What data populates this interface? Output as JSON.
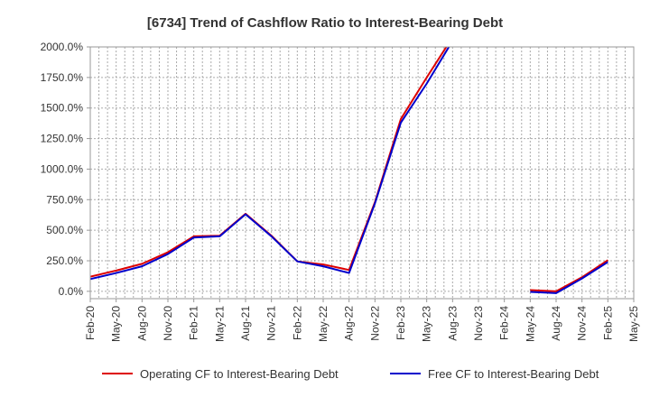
{
  "chart_data": {
    "type": "line",
    "title": "[6734]  Trend of Cashflow Ratio to Interest-Bearing Debt",
    "xlabel": "",
    "ylabel": "",
    "categories": [
      "Feb-20",
      "May-20",
      "Aug-20",
      "Nov-20",
      "Feb-21",
      "May-21",
      "Aug-21",
      "Nov-21",
      "Feb-22",
      "May-22",
      "Aug-22",
      "Nov-22",
      "Feb-23",
      "May-23",
      "Aug-23",
      "Nov-23",
      "Feb-24",
      "May-24",
      "Aug-24",
      "Nov-24",
      "Feb-25",
      "May-25"
    ],
    "x_ticks": [
      "Feb-20",
      "May-20",
      "Aug-20",
      "Nov-20",
      "Feb-21",
      "May-21",
      "Aug-21",
      "Nov-21",
      "Feb-22",
      "May-22",
      "Aug-22",
      "Nov-22",
      "Feb-23",
      "May-23",
      "Aug-23",
      "Nov-23",
      "Feb-24",
      "May-24",
      "Aug-24",
      "Nov-24",
      "Feb-25",
      "May-25"
    ],
    "y_ticks": [
      "0.0%",
      "250.0%",
      "500.0%",
      "750.0%",
      "1000.0%",
      "1250.0%",
      "1500.0%",
      "1750.0%",
      "2000.0%"
    ],
    "ylim": [
      -60,
      2000
    ],
    "grid": true,
    "legend_position": "bottom",
    "series": [
      {
        "name": "Operating CF to Interest-Bearing Debt",
        "color": "#dd0000",
        "values": [
          120,
          170,
          225,
          320,
          450,
          455,
          635,
          455,
          245,
          220,
          175,
          730,
          1410,
          1750,
          2080,
          null,
          null,
          10,
          0,
          115,
          255,
          null
        ]
      },
      {
        "name": "Free CF to Interest-Bearing Debt",
        "color": "#0000cc",
        "values": [
          100,
          150,
          205,
          305,
          440,
          450,
          630,
          450,
          245,
          205,
          150,
          720,
          1380,
          1700,
          2050,
          null,
          null,
          -5,
          -15,
          105,
          240,
          null
        ]
      }
    ]
  }
}
